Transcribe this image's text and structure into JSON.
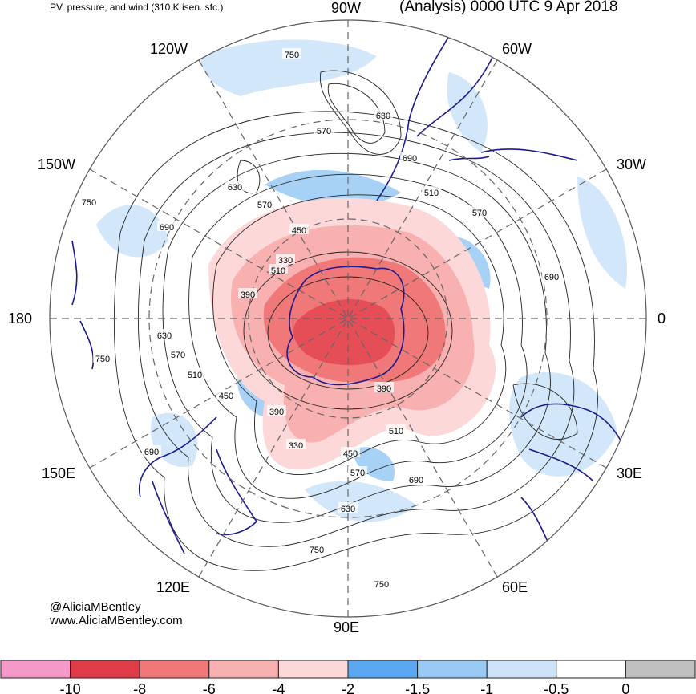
{
  "header": {
    "title": "PV, pressure, and wind (310 K isen. sfc.)",
    "valid": "(Analysis) 0000 UTC 9 Apr 2018"
  },
  "longitudes": [
    "90W",
    "60W",
    "30W",
    "0",
    "30E",
    "60E",
    "90E",
    "120E",
    "150E",
    "180",
    "150W",
    "120W"
  ],
  "contour_labels": [
    "750",
    "630",
    "570",
    "690",
    "510",
    "570",
    "750",
    "630",
    "570",
    "690",
    "450",
    "330",
    "510",
    "390",
    "690",
    "630",
    "570",
    "510",
    "750",
    "450",
    "390",
    "390",
    "510",
    "330",
    "450",
    "570",
    "690",
    "630",
    "690",
    "750",
    "750"
  ],
  "credits": {
    "line1": "@AliciaMBentley",
    "line2": "www.AliciaMBentley.com"
  },
  "colorbar": {
    "colors": [
      "#f59ac8",
      "#e03c48",
      "#f07878",
      "#f8b0b0",
      "#fcd8d8",
      "#5aa8f2",
      "#98caf5",
      "#cde4f8",
      "#ffffff",
      "#c0c0c0"
    ],
    "labels": [
      "-10",
      "-8",
      "-6",
      "-4",
      "-2",
      "-1.5",
      "-1",
      "-0.5",
      "0"
    ]
  },
  "palette": {
    "negative_pv_strong": "#e03c48",
    "negative_pv_light": "#fcd8d8",
    "positive_pv": "#98caf5",
    "coastline": "#1a1a8c",
    "contour": "#222222"
  }
}
